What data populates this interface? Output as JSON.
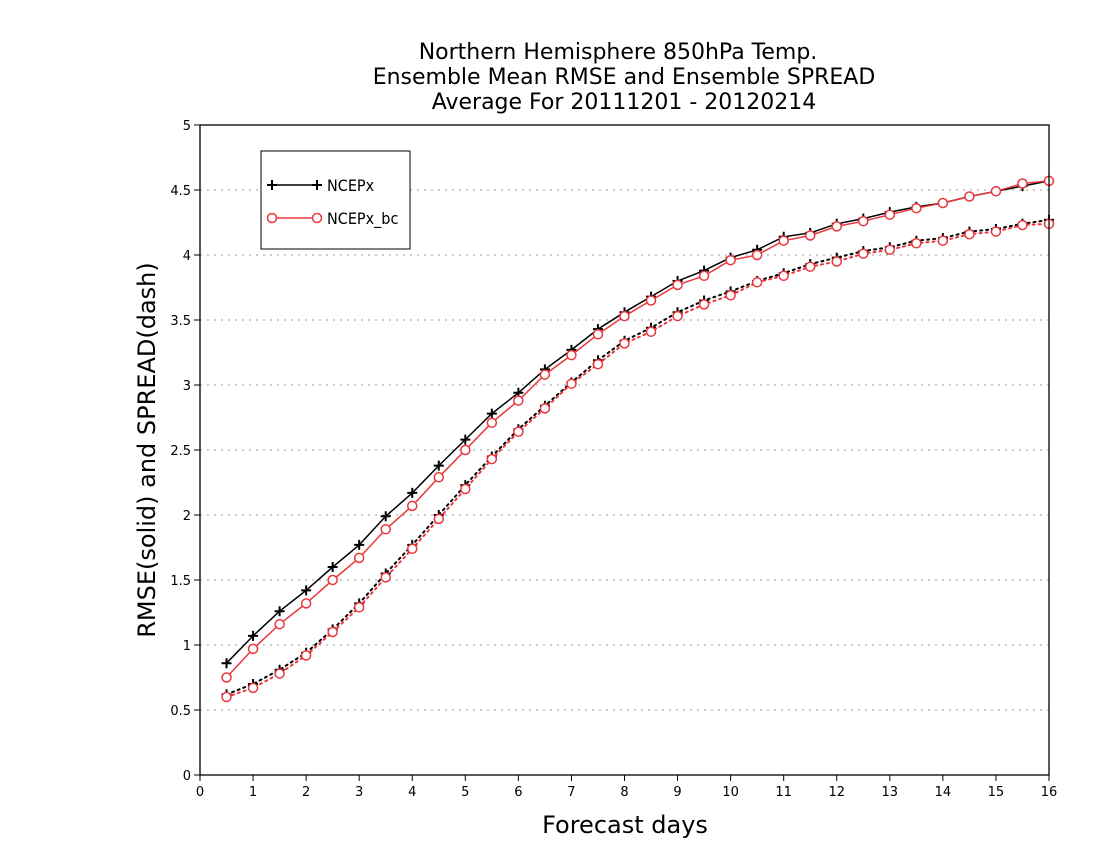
{
  "chart_data": {
    "type": "line",
    "title_lines": [
      "Northern Hemisphere 850hPa Temp.",
      "Ensemble Mean RMSE and Ensemble SPREAD",
      "Average For 20111201 - 20120214"
    ],
    "xlabel": "Forecast days",
    "ylabel": "RMSE(solid) and SPREAD(dash)",
    "xlim": [
      0,
      16
    ],
    "ylim": [
      0,
      5
    ],
    "x_ticks": [
      "0",
      "1",
      "2",
      "3",
      "4",
      "5",
      "6",
      "7",
      "8",
      "9",
      "10",
      "11",
      "12",
      "13",
      "14",
      "15",
      "16"
    ],
    "y_ticks": [
      "0",
      "0.5",
      "1",
      "1.5",
      "2",
      "2.5",
      "3",
      "3.5",
      "4",
      "4.5",
      "5"
    ],
    "y_grid": true,
    "legend_position": "top-left",
    "x": [
      0.5,
      1,
      1.5,
      2,
      2.5,
      3,
      3.5,
      4,
      4.5,
      5,
      5.5,
      6,
      6.5,
      7,
      7.5,
      8,
      8.5,
      9,
      9.5,
      10,
      10.5,
      11,
      11.5,
      12,
      12.5,
      13,
      13.5,
      14,
      14.5,
      15,
      15.5,
      16
    ],
    "series": [
      {
        "name": "NCEPx",
        "marker": "plus",
        "color": "#000000",
        "rmse": [
          0.86,
          1.07,
          1.26,
          1.42,
          1.6,
          1.77,
          1.99,
          2.17,
          2.38,
          2.58,
          2.78,
          2.94,
          3.12,
          3.27,
          3.43,
          3.56,
          3.68,
          3.8,
          3.88,
          3.98,
          4.04,
          4.14,
          4.17,
          4.24,
          4.28,
          4.33,
          4.37,
          4.4,
          4.45,
          4.49,
          4.53,
          4.57
        ],
        "spread": [
          0.62,
          0.7,
          0.81,
          0.94,
          1.12,
          1.32,
          1.55,
          1.77,
          2.0,
          2.23,
          2.45,
          2.66,
          2.84,
          3.02,
          3.19,
          3.34,
          3.44,
          3.56,
          3.65,
          3.72,
          3.8,
          3.86,
          3.93,
          3.98,
          4.03,
          4.06,
          4.11,
          4.13,
          4.18,
          4.2,
          4.24,
          4.27
        ]
      },
      {
        "name": "NCEPx_bc",
        "marker": "circle",
        "color": "#e8383d",
        "rmse": [
          0.75,
          0.97,
          1.16,
          1.32,
          1.5,
          1.67,
          1.89,
          2.07,
          2.29,
          2.5,
          2.71,
          2.88,
          3.08,
          3.23,
          3.39,
          3.53,
          3.65,
          3.77,
          3.84,
          3.96,
          4.0,
          4.11,
          4.15,
          4.22,
          4.26,
          4.31,
          4.36,
          4.4,
          4.45,
          4.49,
          4.55,
          4.57
        ],
        "spread": [
          0.6,
          0.67,
          0.78,
          0.92,
          1.1,
          1.29,
          1.52,
          1.74,
          1.97,
          2.2,
          2.43,
          2.64,
          2.82,
          3.01,
          3.16,
          3.32,
          3.41,
          3.53,
          3.62,
          3.69,
          3.79,
          3.84,
          3.91,
          3.95,
          4.01,
          4.04,
          4.09,
          4.11,
          4.16,
          4.18,
          4.23,
          4.24
        ]
      }
    ]
  }
}
